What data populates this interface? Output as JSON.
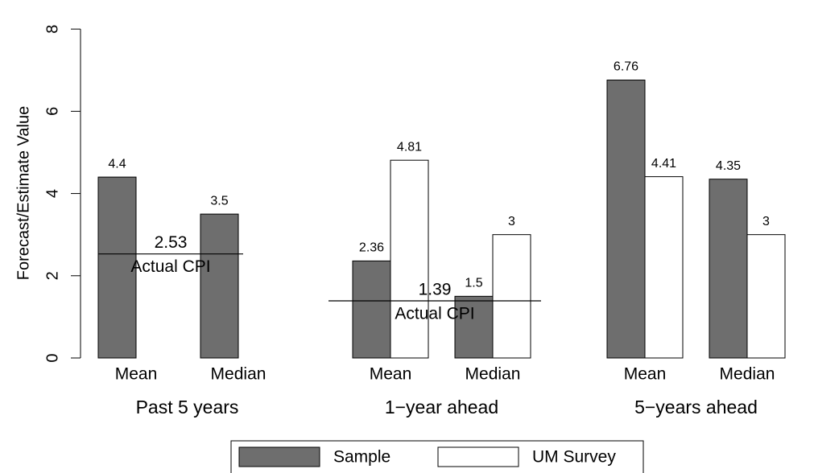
{
  "chart_data": {
    "type": "bar",
    "y_label": "Forecast/Estimate Value",
    "groups": [
      "Past 5 years",
      "1−year ahead",
      "5−years ahead"
    ],
    "categories": [
      "Mean",
      "Median",
      "Mean",
      "Median",
      "Mean",
      "Median"
    ],
    "series": [
      {
        "name": "Sample",
        "color": "#6e6e6e",
        "values": [
          4.4,
          3.5,
          2.36,
          1.5,
          6.76,
          4.35
        ]
      },
      {
        "name": "UM Survey",
        "color": "#ffffff",
        "values": [
          null,
          null,
          4.81,
          3,
          4.41,
          3
        ]
      }
    ],
    "actual_cpi": {
      "label": "Actual CPI",
      "values": [
        2.53,
        1.39,
        null
      ]
    },
    "ylim": [
      0,
      8.5
    ],
    "yticks": [
      0,
      2,
      4,
      6,
      8
    ]
  }
}
